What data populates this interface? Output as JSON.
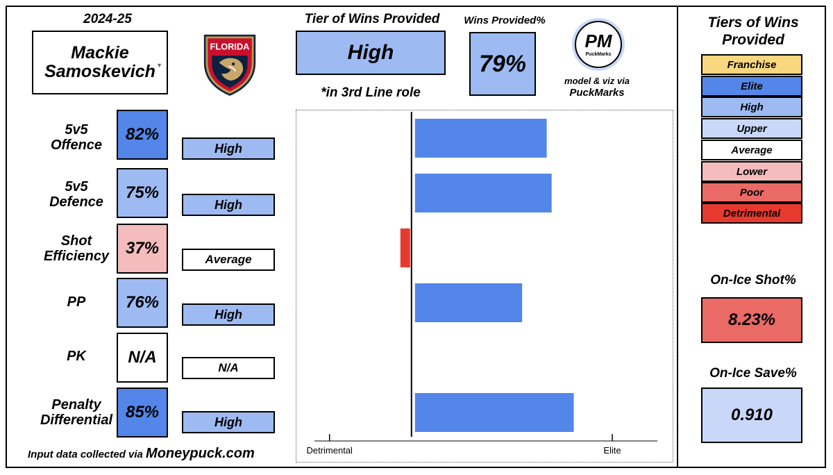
{
  "colors": {
    "franchise": "#f8d77e",
    "elite": "#5386e8",
    "high": "#9dbaf2",
    "upper": "#c9d8f8",
    "average": "#ffffff",
    "lower": "#f4bcbc",
    "poor": "#ea6a66",
    "detrimental": "#e8392f"
  },
  "header": {
    "season": "2024-25",
    "player_first": "Mackie",
    "player_last": "Samoskevich",
    "team_logo": "florida-panthers-logo",
    "logo_text": "FLORIDA"
  },
  "summary": {
    "tier_heading": "Tier of Wins Provided",
    "tier_value": "High",
    "role_note": "*in 3rd Line role",
    "wins_heading": "Wins Provided%",
    "wins_value": "79%",
    "brand_initials": "PM",
    "brand_name": "PuckMarks",
    "credit_line1": "model & viz via",
    "credit_line2": "PuckMarks"
  },
  "metrics": [
    {
      "label1": "5v5",
      "label2": "Offence",
      "pct": "82%",
      "tier": "High"
    },
    {
      "label1": "5v5",
      "label2": "Defence",
      "pct": "75%",
      "tier": "High"
    },
    {
      "label1": "Shot",
      "label2": "Efficiency",
      "pct": "37%",
      "tier": "Average"
    },
    {
      "label1": "PP",
      "label2": "",
      "pct": "76%",
      "tier": "High"
    },
    {
      "label1": "PK",
      "label2": "",
      "pct": "N/A",
      "tier": "N/A"
    },
    {
      "label1": "Penalty",
      "label2": "Differential",
      "pct": "85%",
      "tier": "High"
    }
  ],
  "footer": {
    "source_prefix": "Input data collected via",
    "source_name": "Moneypuck.com"
  },
  "legend": {
    "title1": "Tiers of Wins",
    "title2": "Provided",
    "items": [
      "Franchise",
      "Elite",
      "High",
      "Upper",
      "Average",
      "Lower",
      "Poor",
      "Detrimental"
    ]
  },
  "on_ice": {
    "shot_label": "On-Ice Shot%",
    "shot_value": "8.23%",
    "save_label": "On-Ice Save%",
    "save_value": "0.910"
  },
  "chart_data": {
    "type": "bar",
    "orientation": "horizontal",
    "categories": [
      "5v5 Offence",
      "5v5 Defence",
      "Shot Efficiency",
      "PP",
      "PK",
      "Penalty Differential"
    ],
    "values": [
      1.65,
      1.71,
      -0.14,
      1.35,
      null,
      1.98
    ],
    "xlim": [
      -1.15,
      3.0
    ],
    "reference_line": 0,
    "axis_tick_labels": [
      "Detrimental",
      "Elite"
    ],
    "axis_tick_values": [
      -1,
      2.45
    ],
    "positive_color": "#5386e8",
    "negative_color": "#e8392f"
  }
}
